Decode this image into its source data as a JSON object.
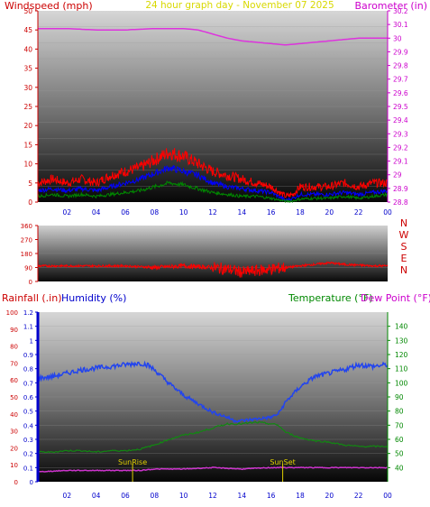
{
  "chart_data": [
    {
      "type": "line",
      "title": "24 hour graph day - November 07 2025",
      "ylabel_left": "Windspeed (mph)",
      "ylabel_right": "Barometer (in)",
      "xlim": [
        0,
        24
      ],
      "x_ticks": [
        "02",
        "04",
        "06",
        "08",
        "10",
        "12",
        "14",
        "16",
        "18",
        "20",
        "22",
        "00"
      ],
      "ylim_left": [
        0,
        50
      ],
      "y_ticks_left": [
        "0",
        "5",
        "10",
        "15",
        "20",
        "25",
        "30",
        "35",
        "40",
        "45",
        "50"
      ],
      "ylim_right": [
        28.8,
        30.2
      ],
      "y_ticks_right": [
        "28.8",
        "28.9",
        "29",
        "29.1",
        "29.2",
        "29.3",
        "29.4",
        "29.5",
        "29.6",
        "29.7",
        "29.8",
        "29.9",
        "30",
        "30.1",
        "30.2"
      ],
      "colors": {
        "title": "#d8d800",
        "wind_label": "#cc0000",
        "baro_label": "#cc00cc",
        "axis_left": "#cc0000",
        "axis_right": "#cc00cc",
        "x_ticks": "#0000cc",
        "gust": "#ff0000",
        "avg": "#0000ff",
        "low": "#008800",
        "barometer": "#dd33dd"
      },
      "series": [
        {
          "key": "barometer",
          "axis": "right",
          "x": [
            0,
            2,
            4,
            6,
            7,
            8,
            9,
            10,
            11,
            12,
            13,
            14,
            15,
            16,
            17,
            18,
            19,
            20,
            21,
            22,
            23,
            24
          ],
          "y": [
            30.07,
            30.07,
            30.06,
            30.06,
            30.065,
            30.07,
            30.07,
            30.07,
            30.06,
            30.03,
            30.0,
            29.98,
            29.97,
            29.96,
            29.95,
            29.96,
            29.97,
            29.98,
            29.99,
            30.0,
            30.0,
            30.0
          ]
        },
        {
          "key": "gust",
          "axis": "left",
          "x": [
            0,
            1,
            2,
            3,
            4,
            5,
            6,
            7,
            8,
            9,
            10,
            11,
            12,
            13,
            14,
            15,
            16,
            17,
            17.5,
            18,
            19,
            20,
            21,
            22,
            23,
            24
          ],
          "y": [
            5,
            6,
            5,
            6,
            5,
            7,
            8,
            9,
            11,
            13,
            12,
            10,
            8,
            7,
            6,
            5,
            4,
            1.5,
            2,
            4,
            4,
            4,
            5,
            4,
            5,
            5
          ]
        },
        {
          "key": "avg",
          "axis": "left",
          "x": [
            0,
            1,
            2,
            3,
            4,
            5,
            6,
            7,
            8,
            9,
            10,
            11,
            12,
            13,
            14,
            15,
            16,
            17,
            17.5,
            18,
            19,
            20,
            21,
            22,
            23,
            24
          ],
          "y": [
            3,
            3.5,
            3,
            3.5,
            3,
            4,
            5,
            6,
            7.5,
            9,
            8,
            7,
            5,
            4,
            3.5,
            3,
            2.5,
            0.5,
            1,
            2,
            2,
            2,
            2.5,
            2,
            2.5,
            3
          ]
        },
        {
          "key": "low",
          "axis": "left",
          "x": [
            0,
            1,
            2,
            3,
            4,
            5,
            6,
            7,
            8,
            9,
            10,
            11,
            12,
            13,
            14,
            15,
            16,
            17,
            17.5,
            18,
            19,
            20,
            21,
            22,
            23,
            24
          ],
          "y": [
            1.5,
            2,
            1.5,
            2,
            1.5,
            2,
            2.5,
            3,
            4,
            5,
            4.5,
            3.5,
            2.5,
            2,
            1.5,
            1.5,
            1,
            0.2,
            0.3,
            0.8,
            1,
            1,
            1.5,
            1,
            1.5,
            2
          ]
        }
      ]
    },
    {
      "type": "line",
      "xlim": [
        0,
        24
      ],
      "ylim_left": [
        0,
        360
      ],
      "y_ticks_left": [
        "0",
        "90",
        "180",
        "270",
        "360"
      ],
      "y_ticks_right": [
        "N",
        "W",
        "S",
        "E",
        "N"
      ],
      "colors": {
        "axis_left": "#cc0000",
        "axis_right": "#cc0000",
        "direction": "#ff0000"
      },
      "series": [
        {
          "key": "direction",
          "axis": "left",
          "x": [
            0,
            2,
            4,
            6,
            7,
            8,
            9,
            10,
            11,
            12,
            13,
            14,
            15,
            16,
            17,
            18,
            19,
            20,
            21,
            22,
            23,
            24
          ],
          "y": [
            100,
            100,
            100,
            100,
            95,
            90,
            95,
            100,
            95,
            90,
            80,
            60,
            70,
            80,
            90,
            100,
            110,
            120,
            110,
            105,
            100,
            100
          ]
        }
      ]
    },
    {
      "type": "line",
      "ylabel_left_1": "Rainfall (.in)",
      "ylabel_left_2": "Humidity (%)",
      "ylabel_right_1": "Temperature (°F)",
      "ylabel_right_2": "Dew Point (°F)",
      "xlim": [
        0,
        24
      ],
      "x_ticks": [
        "02",
        "04",
        "06",
        "08",
        "10",
        "12",
        "14",
        "16",
        "18",
        "20",
        "22",
        "00"
      ],
      "ylim_rain": [
        0,
        1.2
      ],
      "y_ticks_rain": [
        "0",
        "0.1",
        "0.2",
        "0.3",
        "0.4",
        "0.5",
        "0.6",
        "0.7",
        "0.8",
        "0.9",
        "1",
        "1.1",
        "1.2"
      ],
      "ylim_humidity": [
        0,
        100
      ],
      "y_ticks_humidity": [
        "0",
        "10",
        "20",
        "30",
        "40",
        "50",
        "60",
        "70",
        "80",
        "90",
        "100"
      ],
      "ylim_temp": [
        30,
        150
      ],
      "y_ticks_temp": [
        "40",
        "50",
        "60",
        "70",
        "80",
        "90",
        "100",
        "110",
        "120",
        "130",
        "140"
      ],
      "annotations": [
        {
          "label": "SunRise",
          "x": 6.5
        },
        {
          "label": "SunSet",
          "x": 16.8
        }
      ],
      "colors": {
        "rain_label": "#cc0000",
        "humidity_label": "#0000cc",
        "temp_label": "#008800",
        "dew_label": "#cc00cc",
        "humidity": "#2244ee",
        "temperature": "#118811",
        "dewpoint": "#cc33cc",
        "rain_axis": "#0000cc",
        "humidity_axis": "#cc0000",
        "temp_axis": "#008800",
        "x_ticks": "#0000cc",
        "sun": "#e0d000"
      },
      "series": [
        {
          "key": "humidity",
          "axis": "humidity",
          "x": [
            0,
            1,
            2,
            3,
            4,
            5,
            6,
            7,
            7.5,
            8,
            9,
            10,
            11,
            12,
            13,
            13.5,
            14,
            15,
            16,
            16.5,
            17,
            18,
            19,
            20,
            21,
            22,
            23,
            24
          ],
          "y": [
            61,
            62,
            64,
            66,
            67,
            68,
            69,
            70,
            69,
            66,
            58,
            51,
            46,
            41,
            38,
            36,
            36,
            37,
            38,
            40,
            47,
            56,
            62,
            64,
            66,
            69,
            68,
            69
          ]
        },
        {
          "key": "temperature",
          "axis": "temp",
          "x": [
            0,
            1,
            2,
            3,
            4,
            5,
            6,
            7,
            8,
            9,
            10,
            11,
            12,
            13,
            14,
            15,
            16,
            16.5,
            17,
            18,
            19,
            20,
            21,
            22,
            23,
            24
          ],
          "y": [
            51,
            51,
            52,
            52,
            51,
            52,
            52,
            53,
            56,
            60,
            63,
            65,
            68,
            71,
            71,
            72,
            71,
            70,
            65,
            61,
            59,
            58,
            56,
            55,
            55,
            55
          ]
        },
        {
          "key": "dewpoint",
          "axis": "temp",
          "x": [
            0,
            2,
            4,
            6,
            7,
            8,
            10,
            12,
            14,
            16,
            17,
            18,
            20,
            22,
            24
          ],
          "y": [
            37,
            38,
            38,
            38,
            38,
            39,
            39,
            40,
            39,
            40,
            40,
            40,
            40,
            40,
            40
          ]
        }
      ]
    }
  ]
}
